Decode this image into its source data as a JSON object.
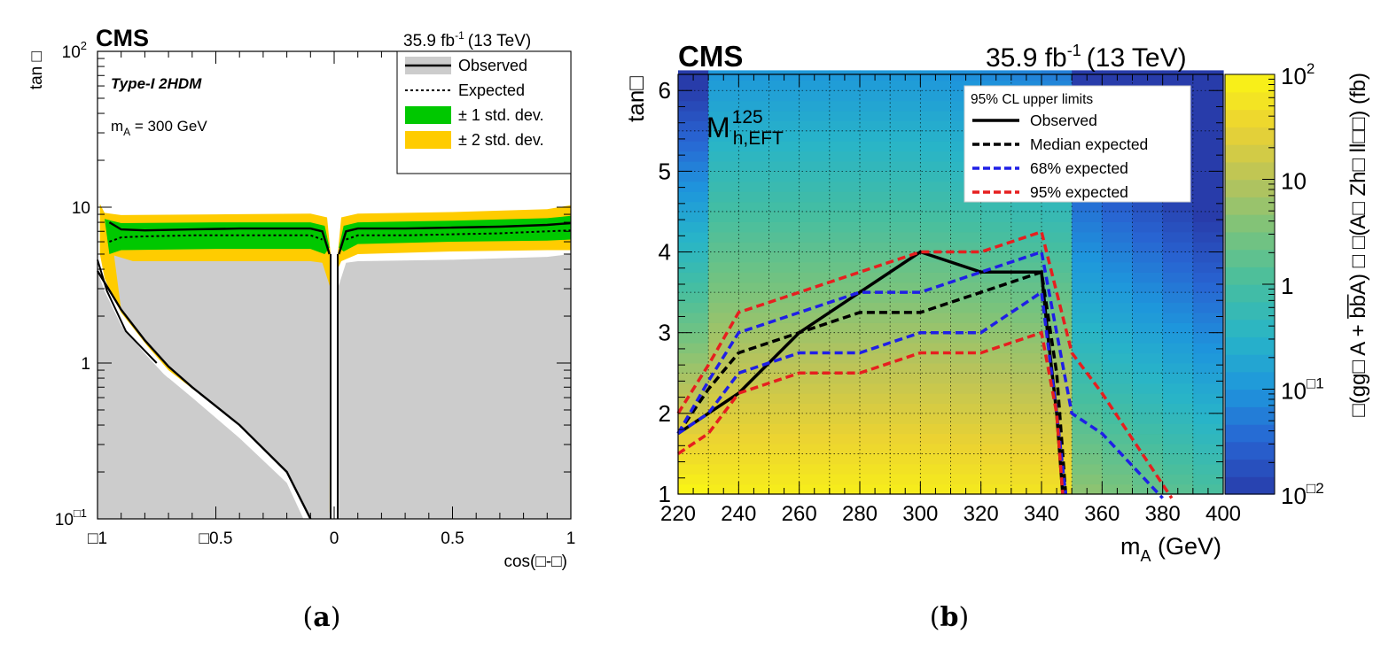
{
  "chart_data": [
    {
      "id": "a",
      "type": "area",
      "caption": "a",
      "experiment": "CMS",
      "lumi_label": "35.9 fb",
      "lumi_sup": "-1",
      "energy_label": "(13 TeV)",
      "model_label": "Type-I 2HDM",
      "mass_label": "m",
      "mass_sub": "A",
      "mass_value": " = 300 GeV",
      "xlabel": "cos(□-□)",
      "ylabel": "tan □",
      "xlim": [
        -1,
        1
      ],
      "ylim": [
        0.1,
        100
      ],
      "yscale": "log",
      "x_ticks": [
        "□1",
        "□0.5",
        "0",
        "0.5",
        "1"
      ],
      "y_ticks": [
        {
          "base": "10",
          "exp": "□1"
        },
        {
          "base": "1",
          "exp": ""
        },
        {
          "base": "10",
          "exp": ""
        },
        {
          "base": "10",
          "exp": "2"
        }
      ],
      "legend": [
        {
          "label": "Observed",
          "style": "observed"
        },
        {
          "label": "Expected",
          "style": "expected"
        },
        {
          "label": "± 1 std. dev.",
          "style": "band1",
          "color": "#00c800"
        },
        {
          "label": "± 2 std. dev.",
          "style": "band2",
          "color": "#ffcc00"
        }
      ],
      "series": [
        {
          "name": "Observed (left, upper)",
          "x": [
            -0.95,
            -0.9,
            -0.8,
            -0.6,
            -0.4,
            -0.2,
            -0.1,
            -0.05,
            -0.02
          ],
          "values": [
            8.0,
            7.2,
            7.1,
            7.2,
            7.3,
            7.3,
            7.3,
            7.0,
            5.0
          ]
        },
        {
          "name": "Observed (right, upper)",
          "x": [
            0.02,
            0.05,
            0.1,
            0.3,
            0.5,
            0.7,
            0.9,
            1.0
          ],
          "values": [
            5.0,
            7.0,
            7.3,
            7.3,
            7.4,
            7.5,
            7.7,
            7.9
          ]
        },
        {
          "name": "Observed (left, lower)",
          "x": [
            -1.0,
            -0.9,
            -0.8,
            -0.7,
            -0.6,
            -0.4,
            -0.2,
            -0.1
          ],
          "values": [
            3.9,
            2.2,
            1.4,
            0.95,
            0.7,
            0.4,
            0.2,
            0.1
          ]
        },
        {
          "name": "Expected (left)",
          "x": [
            -0.95,
            -0.9,
            -0.8,
            -0.6,
            -0.4,
            -0.2,
            -0.1,
            -0.05
          ],
          "values": [
            6.0,
            6.4,
            6.5,
            6.6,
            6.6,
            6.6,
            6.6,
            6.2
          ]
        },
        {
          "name": "Expected (right)",
          "x": [
            0.05,
            0.1,
            0.3,
            0.5,
            0.7,
            0.9,
            1.0
          ],
          "values": [
            6.2,
            6.6,
            6.6,
            6.7,
            6.8,
            7.0,
            7.1
          ]
        }
      ]
    },
    {
      "id": "b",
      "type": "heatmap",
      "caption": "b",
      "experiment": "CMS",
      "lumi_label": "35.9 fb",
      "lumi_sup": "-1",
      "energy_label": "(13 TeV)",
      "scenario_main": "M",
      "scenario_sup": "125",
      "scenario_sub": "h,EFT",
      "xlabel_main": "m",
      "xlabel_sub": "A",
      "xlabel_unit": " (GeV)",
      "ylabel": "tan□",
      "zlabel": "□(gg□ A + b̅b̅A) □ □(A□ Zh□ ll□□) (fb)",
      "xlim": [
        220,
        400
      ],
      "ylim": [
        1,
        6.2
      ],
      "zlim": [
        0.01,
        100
      ],
      "x_ticks": [
        "220",
        "240",
        "260",
        "280",
        "300",
        "320",
        "340",
        "360",
        "380",
        "400"
      ],
      "y_ticks": [
        "1",
        "2",
        "3",
        "4",
        "5",
        "6"
      ],
      "z_ticks": [
        {
          "base": "10",
          "exp": "□2"
        },
        {
          "base": "10",
          "exp": "□1"
        },
        {
          "base": "1",
          "exp": ""
        },
        {
          "base": "10",
          "exp": ""
        },
        {
          "base": "10",
          "exp": "2"
        }
      ],
      "legend_title": "95% CL upper limits",
      "legend": [
        {
          "label": "Observed",
          "color": "#000000",
          "dash": false
        },
        {
          "label": "Median expected",
          "color": "#000000",
          "dash": true
        },
        {
          "label": "68% expected",
          "color": "#1f1fe6",
          "dash": true
        },
        {
          "label": "95% expected",
          "color": "#e61f1f",
          "dash": true
        }
      ],
      "series": [
        {
          "name": "Observed",
          "x": [
            220,
            240,
            260,
            280,
            300,
            320,
            340,
            342,
            345,
            347
          ],
          "values": [
            1.75,
            2.25,
            3.0,
            3.5,
            4.0,
            3.75,
            3.75,
            3.0,
            2.0,
            1.0
          ]
        },
        {
          "name": "Median expected",
          "x": [
            220,
            230,
            240,
            260,
            280,
            300,
            320,
            340,
            345,
            348
          ],
          "values": [
            1.75,
            2.3,
            2.75,
            3.0,
            3.25,
            3.25,
            3.5,
            3.75,
            2.5,
            1.0
          ]
        },
        {
          "name": "68% expected upper",
          "x": [
            220,
            230,
            240,
            260,
            280,
            300,
            320,
            340,
            345,
            350,
            360,
            380
          ],
          "values": [
            1.75,
            2.4,
            3.0,
            3.25,
            3.5,
            3.5,
            3.75,
            4.0,
            3.0,
            2.0,
            1.75,
            0.95
          ]
        },
        {
          "name": "68% expected lower",
          "x": [
            220,
            230,
            240,
            260,
            280,
            300,
            320,
            340,
            345,
            348
          ],
          "values": [
            1.75,
            2.0,
            2.5,
            2.75,
            2.75,
            3.0,
            3.0,
            3.5,
            2.0,
            1.0
          ]
        },
        {
          "name": "95% expected upper",
          "x": [
            220,
            230,
            240,
            260,
            280,
            300,
            320,
            340,
            345,
            350,
            360,
            383
          ],
          "values": [
            2.0,
            2.6,
            3.25,
            3.5,
            3.75,
            4.0,
            4.0,
            4.25,
            3.5,
            2.75,
            2.25,
            0.95
          ]
        },
        {
          "name": "95% expected lower",
          "x": [
            220,
            230,
            240,
            260,
            280,
            300,
            320,
            340,
            345,
            347
          ],
          "values": [
            1.5,
            1.75,
            2.25,
            2.5,
            2.5,
            2.75,
            2.75,
            3.0,
            2.0,
            1.0
          ]
        }
      ]
    }
  ]
}
